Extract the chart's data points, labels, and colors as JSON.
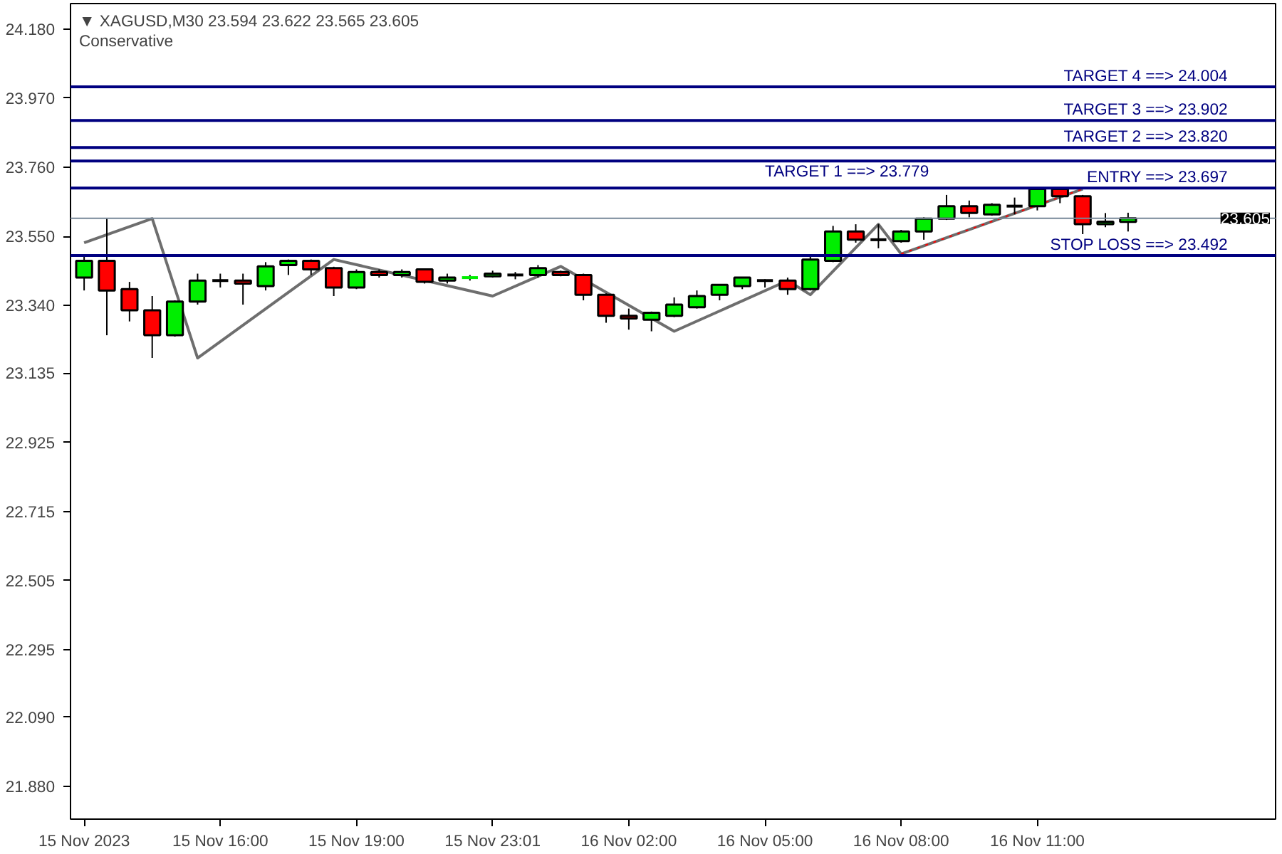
{
  "chart_data": {
    "type": "candlestick",
    "title": "▼ XAGUSD,M30  23.594 23.622 23.565 23.605",
    "subtitle": "Conservative",
    "categories": [
      "15 Nov 2023",
      null,
      null,
      null,
      null,
      null,
      "15 Nov 16:00",
      null,
      null,
      null,
      null,
      null,
      "15 Nov 19:00",
      null,
      null,
      null,
      null,
      null,
      "15 Nov 23:01",
      null,
      null,
      null,
      null,
      null,
      "16 Nov 02:00",
      null,
      null,
      null,
      null,
      null,
      "16 Nov 05:00",
      null,
      null,
      null,
      null,
      null,
      "16 Nov 08:00",
      null,
      null,
      null,
      null,
      null,
      "16 Nov 11:00",
      null,
      null,
      null,
      null
    ],
    "ohlc": [
      [
        23.425,
        23.493,
        23.386,
        23.476
      ],
      [
        23.476,
        23.604,
        23.25,
        23.386
      ],
      [
        23.39,
        23.412,
        23.292,
        23.326
      ],
      [
        23.326,
        23.369,
        23.181,
        23.25
      ],
      [
        23.25,
        23.356,
        23.246,
        23.352
      ],
      [
        23.352,
        23.437,
        23.343,
        23.416
      ],
      [
        23.416,
        23.437,
        23.395,
        23.416
      ],
      [
        23.416,
        23.437,
        23.343,
        23.407
      ],
      [
        23.399,
        23.472,
        23.386,
        23.459
      ],
      [
        23.463,
        23.48,
        23.433,
        23.476
      ],
      [
        23.476,
        23.48,
        23.433,
        23.45
      ],
      [
        23.454,
        23.458,
        23.369,
        23.395
      ],
      [
        23.395,
        23.45,
        23.39,
        23.442
      ],
      [
        23.442,
        23.45,
        23.425,
        23.433
      ],
      [
        23.433,
        23.45,
        23.425,
        23.442
      ],
      [
        23.45,
        23.452,
        23.407,
        23.412
      ],
      [
        23.416,
        23.437,
        23.407,
        23.425
      ],
      [
        23.425,
        23.433,
        23.416,
        23.425
      ],
      [
        23.429,
        23.446,
        23.425,
        23.437
      ],
      [
        23.433,
        23.442,
        23.42,
        23.433
      ],
      [
        23.433,
        23.463,
        23.425,
        23.454
      ],
      [
        23.442,
        23.446,
        23.429,
        23.433
      ],
      [
        23.433,
        23.437,
        23.356,
        23.373
      ],
      [
        23.373,
        23.377,
        23.288,
        23.309
      ],
      [
        23.309,
        23.331,
        23.267,
        23.301
      ],
      [
        23.297,
        23.322,
        23.262,
        23.318
      ],
      [
        23.309,
        23.365,
        23.305,
        23.343
      ],
      [
        23.335,
        23.386,
        23.331,
        23.369
      ],
      [
        23.373,
        23.403,
        23.356,
        23.403
      ],
      [
        23.399,
        23.425,
        23.39,
        23.425
      ],
      [
        23.416,
        23.42,
        23.395,
        23.416
      ],
      [
        23.416,
        23.425,
        23.373,
        23.39
      ],
      [
        23.39,
        23.493,
        23.386,
        23.48
      ],
      [
        23.476,
        23.582,
        23.472,
        23.565
      ],
      [
        23.565,
        23.587,
        23.531,
        23.54
      ],
      [
        23.54,
        23.587,
        23.514,
        23.54
      ],
      [
        23.536,
        23.57,
        23.531,
        23.565
      ],
      [
        23.565,
        23.608,
        23.54,
        23.604
      ],
      [
        23.604,
        23.676,
        23.6,
        23.642
      ],
      [
        23.642,
        23.659,
        23.608,
        23.621
      ],
      [
        23.617,
        23.651,
        23.613,
        23.646
      ],
      [
        23.642,
        23.668,
        23.617,
        23.642
      ],
      [
        23.642,
        23.697,
        23.629,
        23.694
      ],
      [
        23.694,
        23.697,
        23.651,
        23.672
      ],
      [
        23.672,
        23.676,
        23.557,
        23.587
      ],
      [
        23.587,
        23.621,
        23.578,
        23.595
      ],
      [
        23.594,
        23.622,
        23.565,
        23.605
      ]
    ],
    "colors": [
      "#00ee00",
      "#ff0000",
      "#ff0000",
      "#ff0000",
      "#00ee00",
      "#00ee00",
      "#000000",
      "#ff0000",
      "#00ee00",
      "#00ee00",
      "#ff0000",
      "#ff0000",
      "#00ee00",
      "#ff0000",
      "#00ee00",
      "#ff0000",
      "#00ee00",
      "#00ee00",
      "#00ee00",
      "#000000",
      "#00ee00",
      "#ff0000",
      "#ff0000",
      "#ff0000",
      "#ff0000",
      "#00ee00",
      "#00ee00",
      "#00ee00",
      "#00ee00",
      "#00ee00",
      "#000000",
      "#ff0000",
      "#00ee00",
      "#00ee00",
      "#ff0000",
      "#000000",
      "#00ee00",
      "#00ee00",
      "#00ee00",
      "#ff0000",
      "#00ee00",
      "#000000",
      "#00ee00",
      "#ff0000",
      "#ff0000",
      "#00ee00",
      "#00ee00"
    ],
    "series": [
      {
        "type": "line",
        "color": "#6e6e6e",
        "line_style": "solid",
        "values": [
          23.531,
          null,
          null,
          23.604,
          null,
          23.181,
          null,
          null,
          null,
          null,
          null,
          23.48,
          null,
          null,
          null,
          null,
          null,
          null,
          23.369,
          null,
          null,
          23.459,
          null,
          null,
          null,
          null,
          23.262,
          null,
          null,
          null,
          null,
          23.416,
          23.373,
          null,
          null,
          23.587,
          23.497,
          null,
          null,
          null,
          null,
          null,
          null,
          null,
          23.694,
          null,
          null
        ]
      },
      {
        "type": "line",
        "color": "#ff0000",
        "line_style": "dotted",
        "values": [
          null,
          null,
          null,
          null,
          null,
          null,
          null,
          null,
          null,
          null,
          null,
          null,
          null,
          null,
          null,
          null,
          null,
          null,
          null,
          null,
          null,
          null,
          null,
          null,
          null,
          null,
          null,
          null,
          null,
          null,
          null,
          null,
          null,
          null,
          null,
          null,
          23.497,
          null,
          null,
          null,
          null,
          null,
          null,
          null,
          23.694,
          null,
          null
        ]
      }
    ],
    "ylim": [
      21.781,
      24.257
    ],
    "yticks": [
      {
        "value": 24.18,
        "label": "24.180"
      },
      {
        "value": 23.97,
        "label": "23.970"
      },
      {
        "value": 23.76,
        "label": "23.760"
      },
      {
        "value": 23.55,
        "label": "23.550"
      },
      {
        "value": 23.34,
        "label": "23.340"
      },
      {
        "value": 23.135,
        "label": "23.135"
      },
      {
        "value": 22.925,
        "label": "22.925"
      },
      {
        "value": 22.715,
        "label": "22.715"
      },
      {
        "value": 22.505,
        "label": "22.505"
      },
      {
        "value": 22.295,
        "label": "22.295"
      },
      {
        "value": 22.09,
        "label": "22.090"
      },
      {
        "value": 21.88,
        "label": "21.880"
      }
    ],
    "ref_lines": [
      {
        "axis": "y",
        "value": 23.605,
        "label": "23.605",
        "color": "#778899",
        "line_style": "solid"
      },
      {
        "axis": "y",
        "value": 24.004,
        "label": "TARGET 4          ==>  24.004",
        "color": "#000080",
        "line_style": "solid"
      },
      {
        "axis": "y",
        "value": 23.902,
        "label": "TARGET 3          ==>  23.902",
        "color": "#000080",
        "line_style": "solid"
      },
      {
        "axis": "y",
        "value": 23.82,
        "label": "TARGET 2          ==>  23.820",
        "color": "#000080",
        "line_style": "solid"
      },
      {
        "axis": "y",
        "value": 23.779,
        "label": "TARGET 1          ==>  23.779",
        "color": "#000080",
        "line_style": "solid"
      },
      {
        "axis": "y",
        "value": 23.697,
        "label": "ENTRY          ==>  23.697",
        "color": "#000080",
        "line_style": "solid"
      },
      {
        "axis": "y",
        "value": 23.492,
        "label": "STOP LOSS          ==>  23.492",
        "color": "#000080",
        "line_style": "solid"
      }
    ],
    "grid": false
  }
}
